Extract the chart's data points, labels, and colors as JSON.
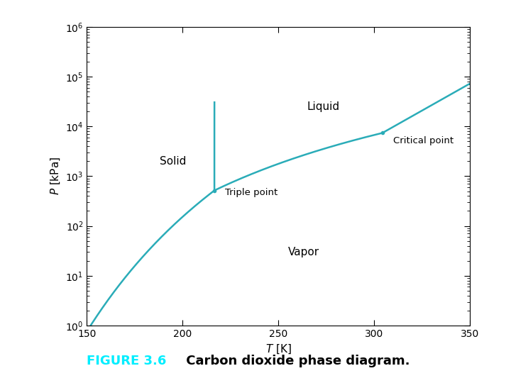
{
  "title": "",
  "xlabel": "T [K]",
  "ylabel": "P [kPa]",
  "xlim": [
    150,
    350
  ],
  "ylim_log": [
    1,
    1000000
  ],
  "line_color": "#2AACB8",
  "line_width": 1.8,
  "background_color": "#ffffff",
  "figure_caption_bold": "FIGURE 3.6",
  "figure_caption_rest": " Carbon dioxide phase diagram.",
  "caption_color_bold": "#00EEFF",
  "caption_color_rest": "#000000",
  "triple_point_T": 216.55,
  "triple_point_P": 517.0,
  "critical_point_T": 304.2,
  "critical_point_P": 7380.0
}
